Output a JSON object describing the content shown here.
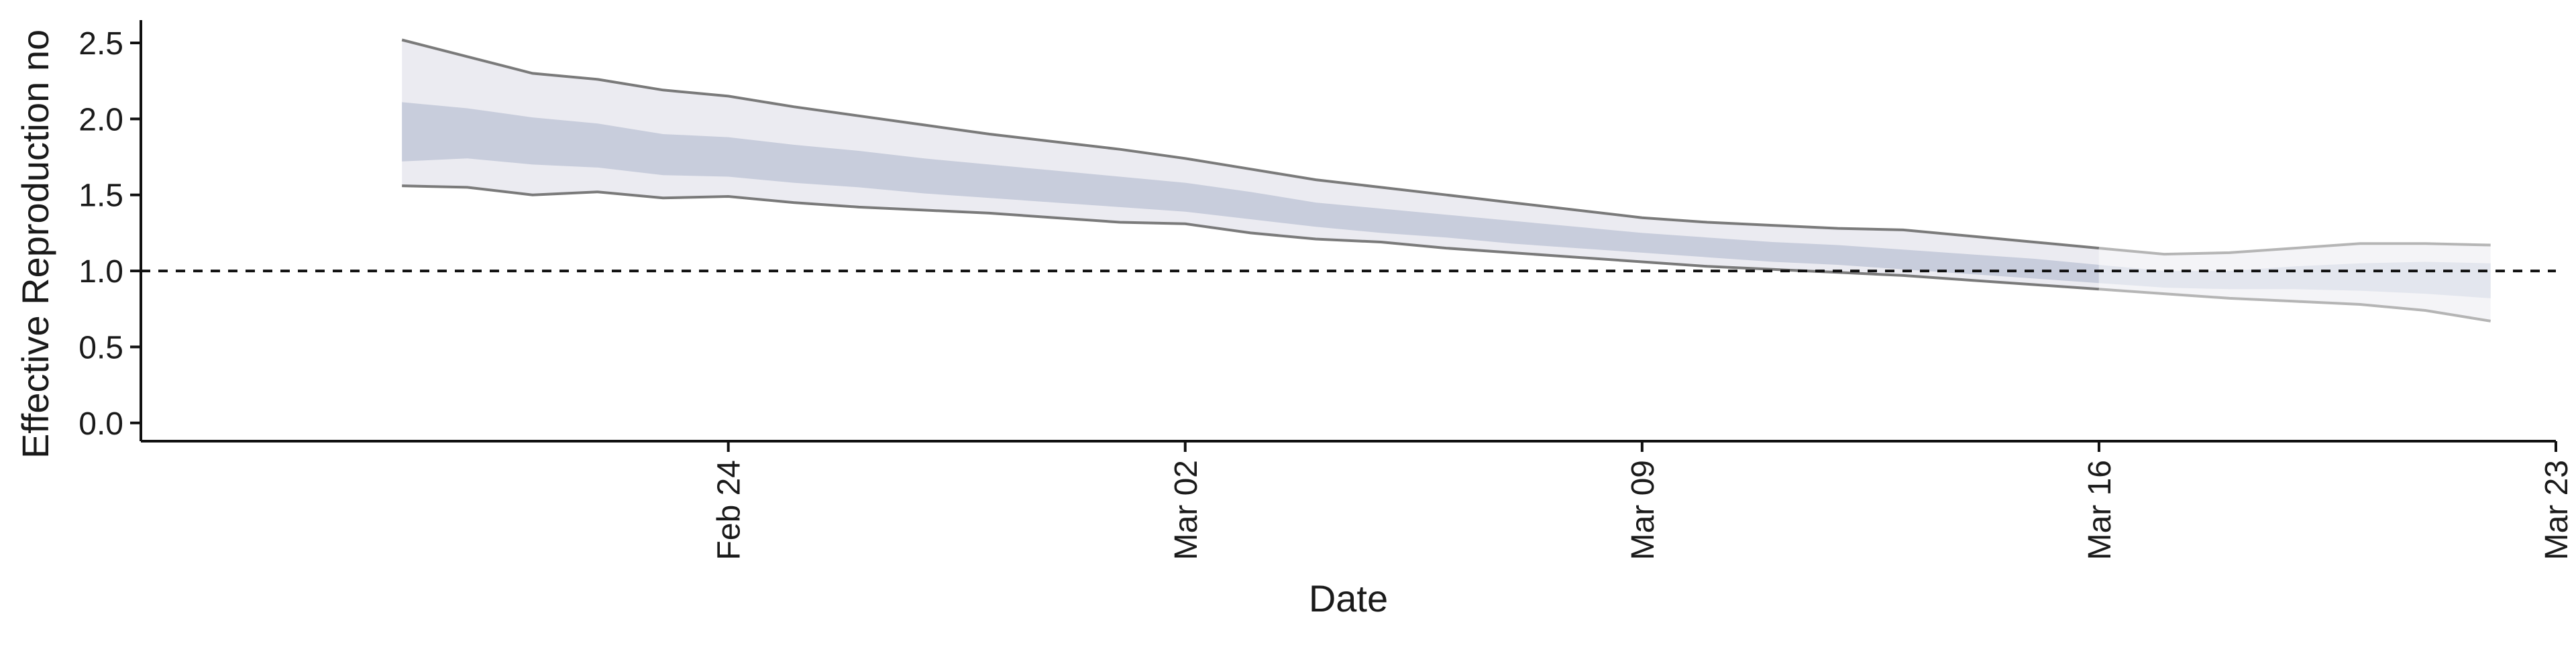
{
  "chart_data": {
    "type": "area",
    "xlabel": "Date",
    "ylabel": "Effective Reproduction no",
    "ylim": [
      -0.12,
      2.65
    ],
    "xlim": [
      "2020-02-15",
      "2020-03-23"
    ],
    "yticks": [
      0.0,
      0.5,
      1.0,
      1.5,
      2.0,
      2.5
    ],
    "ytick_labels": [
      "0.0",
      "0.5",
      "1.0",
      "1.5",
      "2.0",
      "2.5"
    ],
    "xticks": [
      "2020-02-24",
      "2020-03-02",
      "2020-03-09",
      "2020-03-16",
      "2020-03-23"
    ],
    "xtick_labels": [
      "Feb 24",
      "Mar 02",
      "Mar 09",
      "Mar 16",
      "Mar 23"
    ],
    "reference_line": {
      "y": 1.0,
      "style": "dashed"
    },
    "grid": false,
    "legend": "none",
    "colors": {
      "outer_band_estimate": "#ebebf1",
      "inner_band_estimate": "#c8cddc",
      "outer_band_forecast": "#f4f4f7",
      "inner_band_forecast": "#e3e6ee",
      "bound_line_estimate": "#7a7a7a",
      "bound_line_forecast": "#b5b5b5",
      "axis": "#111111"
    },
    "series": {
      "dates": [
        "2020-02-19",
        "2020-02-20",
        "2020-02-21",
        "2020-02-22",
        "2020-02-23",
        "2020-02-24",
        "2020-02-25",
        "2020-02-26",
        "2020-02-27",
        "2020-02-28",
        "2020-02-29",
        "2020-03-01",
        "2020-03-02",
        "2020-03-03",
        "2020-03-04",
        "2020-03-05",
        "2020-03-06",
        "2020-03-07",
        "2020-03-08",
        "2020-03-09",
        "2020-03-10",
        "2020-03-11",
        "2020-03-12",
        "2020-03-13",
        "2020-03-14",
        "2020-03-15",
        "2020-03-16",
        "2020-03-17",
        "2020-03-18",
        "2020-03-19",
        "2020-03-20",
        "2020-03-21",
        "2020-03-22"
      ],
      "upper_90": [
        2.52,
        2.41,
        2.3,
        2.26,
        2.19,
        2.15,
        2.08,
        2.02,
        1.96,
        1.9,
        1.85,
        1.8,
        1.74,
        1.67,
        1.6,
        1.55,
        1.5,
        1.45,
        1.4,
        1.35,
        1.32,
        1.3,
        1.28,
        1.27,
        1.23,
        1.19,
        1.15,
        1.11,
        1.12,
        1.15,
        1.18,
        1.18,
        1.17
      ],
      "upper_50": [
        2.11,
        2.07,
        2.01,
        1.97,
        1.9,
        1.88,
        1.83,
        1.79,
        1.74,
        1.7,
        1.66,
        1.62,
        1.58,
        1.52,
        1.45,
        1.41,
        1.37,
        1.33,
        1.29,
        1.25,
        1.22,
        1.19,
        1.17,
        1.14,
        1.11,
        1.08,
        1.04,
        1.0,
        1.0,
        1.03,
        1.05,
        1.06,
        1.05
      ],
      "lower_50": [
        1.72,
        1.74,
        1.7,
        1.68,
        1.63,
        1.62,
        1.58,
        1.55,
        1.51,
        1.48,
        1.45,
        1.42,
        1.39,
        1.34,
        1.29,
        1.25,
        1.22,
        1.18,
        1.15,
        1.12,
        1.09,
        1.06,
        1.04,
        1.01,
        0.98,
        0.95,
        0.92,
        0.89,
        0.88,
        0.88,
        0.87,
        0.85,
        0.82
      ],
      "lower_90": [
        1.56,
        1.55,
        1.5,
        1.52,
        1.48,
        1.49,
        1.45,
        1.42,
        1.4,
        1.38,
        1.35,
        1.32,
        1.31,
        1.25,
        1.21,
        1.19,
        1.15,
        1.12,
        1.09,
        1.06,
        1.03,
        1.01,
        0.99,
        0.97,
        0.94,
        0.91,
        0.88,
        0.85,
        0.82,
        0.8,
        0.78,
        0.74,
        0.67
      ],
      "forecast_start": "2020-03-16"
    }
  }
}
